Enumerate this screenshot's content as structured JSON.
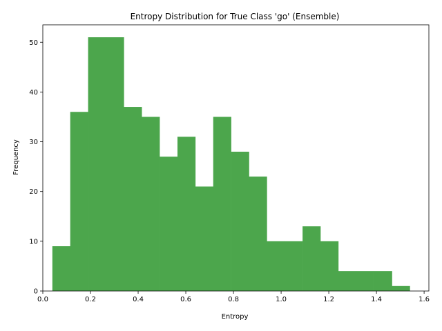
{
  "chart_data": {
    "type": "bar",
    "title": "Entropy Distribution for True Class 'go' (Ensemble)",
    "xlabel": "Entropy",
    "ylabel": "Frequency",
    "bin_edges": [
      0.04,
      0.115,
      0.19,
      0.265,
      0.34,
      0.415,
      0.49,
      0.565,
      0.64,
      0.715,
      0.79,
      0.865,
      0.94,
      1.015,
      1.09,
      1.165,
      1.24,
      1.315,
      1.39,
      1.465,
      1.54
    ],
    "values": [
      9,
      36,
      51,
      51,
      37,
      35,
      27,
      31,
      21,
      35,
      28,
      23,
      10,
      10,
      13,
      10,
      4,
      4,
      4,
      1
    ],
    "xlim": [
      0.0,
      1.62
    ],
    "ylim": [
      0,
      53.5
    ],
    "xticks": [
      0.0,
      0.2,
      0.4,
      0.6,
      0.8,
      1.0,
      1.2,
      1.4,
      1.6
    ],
    "xtick_labels": [
      "0.0",
      "0.2",
      "0.4",
      "0.6",
      "0.8",
      "1.0",
      "1.2",
      "1.4",
      "1.6"
    ],
    "yticks": [
      0,
      10,
      20,
      30,
      40,
      50
    ],
    "ytick_labels": [
      "0",
      "10",
      "20",
      "30",
      "40",
      "50"
    ],
    "bar_color": "#4ca64c",
    "grid": false,
    "legend": "none"
  }
}
